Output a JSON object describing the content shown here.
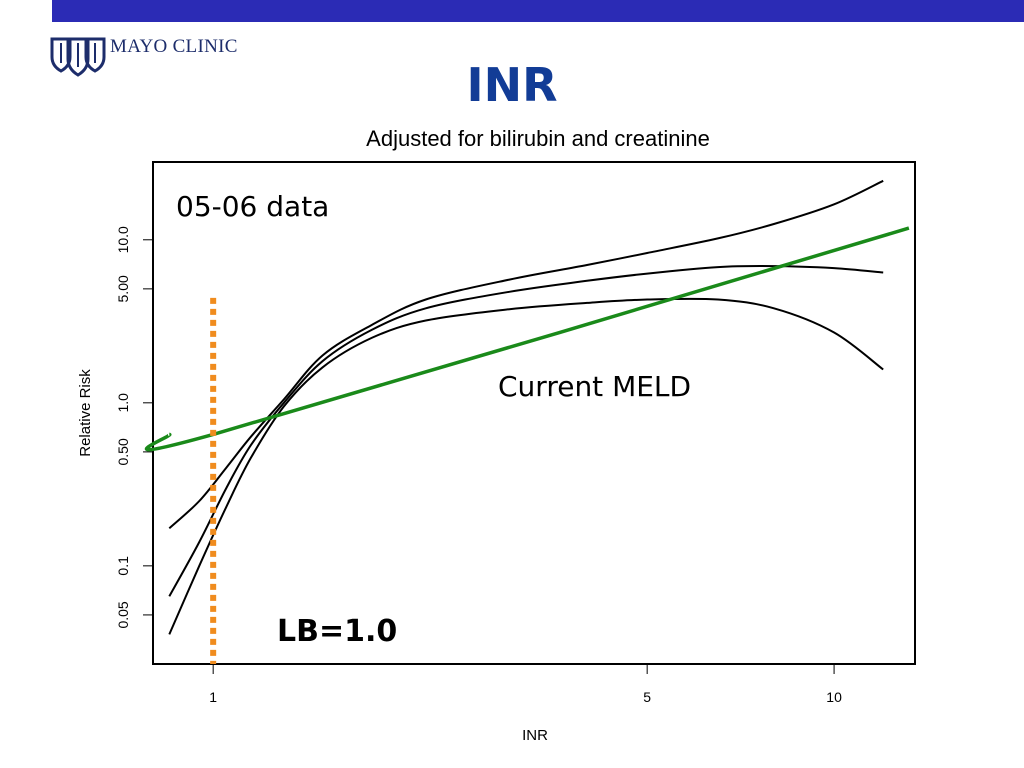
{
  "header": {
    "bar_color": "#2b2bb5",
    "logo_text": "MAYO CLINIC",
    "logo_icon": "mayo-shields-icon"
  },
  "slide": {
    "title": "INR",
    "title_color": "#123c96"
  },
  "chart_data": {
    "type": "line",
    "title": "Adjusted for bilirubin and creatinine",
    "xlabel": "INR",
    "ylabel": "Relative Risk",
    "x_scale": "log",
    "y_scale": "log",
    "xlim": [
      0.8,
      13.5
    ],
    "ylim": [
      0.025,
      30
    ],
    "x_ticks": [
      {
        "value": 1,
        "label": "1"
      },
      {
        "value": 5,
        "label": "5"
      },
      {
        "value": 10,
        "label": "10"
      }
    ],
    "y_ticks": [
      {
        "value": 0.05,
        "label": "0.05"
      },
      {
        "value": 0.1,
        "label": "0.1"
      },
      {
        "value": 0.5,
        "label": "0.50"
      },
      {
        "value": 1,
        "label": "1.0"
      },
      {
        "value": 5,
        "label": "5.00"
      },
      {
        "value": 10,
        "label": "10.0"
      }
    ],
    "grid": false,
    "series": [
      {
        "color": "#000000",
        "x": [
          0.85,
          0.95,
          1.05,
          1.15,
          1.3,
          1.5,
          1.8,
          2.2,
          3.0,
          4.0,
          5.0,
          6.5,
          8.0,
          10.0,
          12.0
        ],
        "y": [
          0.038,
          0.1,
          0.23,
          0.46,
          0.95,
          1.65,
          2.5,
          3.2,
          3.75,
          4.1,
          4.3,
          4.3,
          3.8,
          2.7,
          1.6
        ]
      },
      {
        "color": "#000000",
        "x": [
          0.85,
          0.95,
          1.05,
          1.15,
          1.3,
          1.5,
          1.8,
          2.2,
          3.0,
          4.0,
          5.0,
          6.5,
          8.0,
          10.0,
          12.0
        ],
        "y": [
          0.065,
          0.14,
          0.3,
          0.55,
          1.0,
          1.8,
          2.8,
          3.8,
          4.8,
          5.6,
          6.2,
          6.8,
          6.9,
          6.7,
          6.3
        ]
      },
      {
        "color": "#000000",
        "x": [
          0.85,
          0.95,
          1.05,
          1.15,
          1.3,
          1.5,
          1.8,
          2.2,
          3.0,
          4.0,
          5.0,
          6.5,
          8.0,
          10.0,
          12.0
        ],
        "y": [
          0.17,
          0.25,
          0.4,
          0.62,
          1.05,
          1.95,
          3.0,
          4.3,
          5.7,
          7.0,
          8.3,
          10.2,
          12.5,
          16.5,
          23.0
        ]
      },
      {
        "name": "Current MELD",
        "color": "#1a8a1a",
        "x": [
          0.85,
          1.0,
          13.2
        ],
        "y": [
          0.64,
          0.64,
          11.8
        ]
      }
    ],
    "vertical_line": {
      "x": 1.0,
      "y_top": 4.4,
      "label": "LB=1.0",
      "color": "#f08c1e",
      "style": "dotted"
    },
    "annotations": [
      {
        "text": "05-06 data",
        "position": "top-left"
      },
      {
        "text": "Current MELD",
        "x": 2.55,
        "y": 1.42
      }
    ]
  }
}
